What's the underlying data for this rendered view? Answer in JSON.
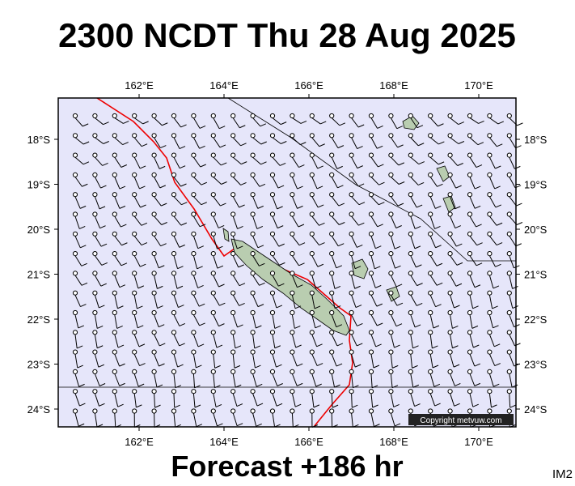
{
  "title": "2300 NCDT Thu 28 Aug 2025",
  "footer": "Forecast +186 hr",
  "corner_tag": "IM2",
  "copyright": "Copyright metvuw.com",
  "map": {
    "lon_labels": [
      "162°E",
      "164°E",
      "166°E",
      "168°E",
      "170°E"
    ],
    "lat_labels": [
      "18°S",
      "19°S",
      "20°S",
      "21°S",
      "22°S",
      "23°S",
      "24°S"
    ]
  }
}
